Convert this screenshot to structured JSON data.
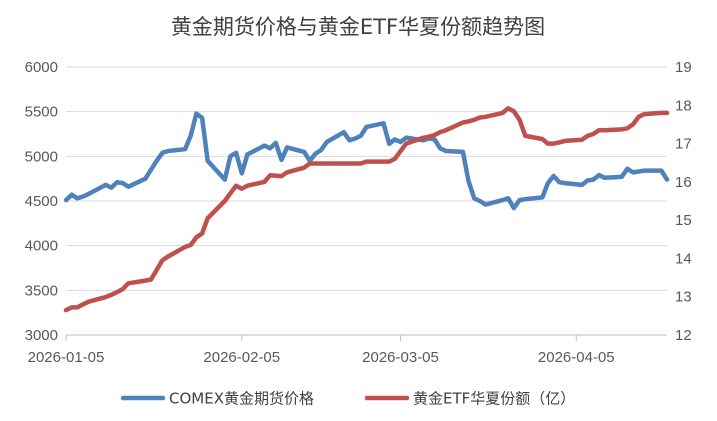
{
  "chart_data": {
    "type": "line",
    "title": "黄金期货价格与黄金ETF华夏份额趋势图",
    "x_ticks": [
      "2026-01-05",
      "2026-02-05",
      "2026-03-05",
      "2026-04-05"
    ],
    "x_range": [
      "2026-01-05",
      "2026-04-21"
    ],
    "y_left": {
      "min": 3000,
      "max": 6000,
      "ticks": [
        3000,
        3500,
        4000,
        4500,
        5000,
        5500,
        6000
      ]
    },
    "y_right": {
      "min": 12,
      "max": 19,
      "ticks": [
        12,
        13,
        14,
        15,
        16,
        17,
        18,
        19
      ]
    },
    "grid": "horizontal",
    "legend_position": "bottom",
    "series": [
      {
        "name": "COMEX黄金期货价格",
        "axis": "left",
        "color": "#4f81bd",
        "x": [
          "2026-01-05",
          "2026-01-06",
          "2026-01-07",
          "2026-01-08",
          "2026-01-09",
          "2026-01-12",
          "2026-01-13",
          "2026-01-14",
          "2026-01-15",
          "2026-01-16",
          "2026-01-19",
          "2026-01-20",
          "2026-01-21",
          "2026-01-22",
          "2026-01-23",
          "2026-01-26",
          "2026-01-27",
          "2026-01-28",
          "2026-01-29",
          "2026-01-30",
          "2026-02-02",
          "2026-02-03",
          "2026-02-04",
          "2026-02-05",
          "2026-02-06",
          "2026-02-09",
          "2026-02-10",
          "2026-02-11",
          "2026-02-12",
          "2026-02-13",
          "2026-02-16",
          "2026-02-17",
          "2026-02-18",
          "2026-02-19",
          "2026-02-20",
          "2026-02-23",
          "2026-02-24",
          "2026-02-25",
          "2026-02-26",
          "2026-02-27",
          "2026-03-02",
          "2026-03-03",
          "2026-03-04",
          "2026-03-05",
          "2026-03-06",
          "2026-03-09",
          "2026-03-10",
          "2026-03-11",
          "2026-03-12",
          "2026-03-13",
          "2026-03-16",
          "2026-03-17",
          "2026-03-18",
          "2026-03-19",
          "2026-03-20",
          "2026-03-23",
          "2026-03-24",
          "2026-03-25",
          "2026-03-26",
          "2026-03-27",
          "2026-03-30",
          "2026-03-31",
          "2026-04-01",
          "2026-04-02",
          "2026-04-03",
          "2026-04-06",
          "2026-04-07",
          "2026-04-08",
          "2026-04-09",
          "2026-04-10",
          "2026-04-13",
          "2026-04-14",
          "2026-04-15",
          "2026-04-16",
          "2026-04-17",
          "2026-04-20",
          "2026-04-21"
        ],
        "values": [
          4510,
          4570,
          4530,
          4550,
          4580,
          4680,
          4650,
          4710,
          4700,
          4660,
          4750,
          4850,
          4950,
          5040,
          5060,
          5080,
          5230,
          5480,
          5430,
          4950,
          4740,
          5000,
          5040,
          4810,
          5020,
          5120,
          5090,
          5150,
          4960,
          5100,
          5050,
          4950,
          5030,
          5070,
          5160,
          5270,
          5180,
          5200,
          5230,
          5330,
          5370,
          5140,
          5190,
          5160,
          5210,
          5180,
          5200,
          5190,
          5090,
          5060,
          5050,
          4720,
          4530,
          4500,
          4460,
          4510,
          4530,
          4420,
          4510,
          4520,
          4540,
          4700,
          4780,
          4710,
          4700,
          4680,
          4730,
          4740,
          4790,
          4760,
          4770,
          4860,
          4820,
          4830,
          4840,
          4840,
          4740
        ]
      },
      {
        "name": "黄金ETF华夏份额（亿）",
        "axis": "right",
        "color": "#c0504d",
        "x": [
          "2026-01-05",
          "2026-01-06",
          "2026-01-07",
          "2026-01-08",
          "2026-01-09",
          "2026-01-12",
          "2026-01-13",
          "2026-01-14",
          "2026-01-15",
          "2026-01-16",
          "2026-01-19",
          "2026-01-20",
          "2026-01-21",
          "2026-01-22",
          "2026-01-23",
          "2026-01-26",
          "2026-01-27",
          "2026-01-28",
          "2026-01-29",
          "2026-01-30",
          "2026-02-02",
          "2026-02-03",
          "2026-02-04",
          "2026-02-05",
          "2026-02-06",
          "2026-02-09",
          "2026-02-10",
          "2026-02-11",
          "2026-02-12",
          "2026-02-13",
          "2026-02-16",
          "2026-02-17",
          "2026-02-18",
          "2026-02-19",
          "2026-02-20",
          "2026-02-23",
          "2026-02-24",
          "2026-02-25",
          "2026-02-26",
          "2026-02-27",
          "2026-03-02",
          "2026-03-03",
          "2026-03-04",
          "2026-03-05",
          "2026-03-06",
          "2026-03-09",
          "2026-03-10",
          "2026-03-11",
          "2026-03-12",
          "2026-03-13",
          "2026-03-16",
          "2026-03-17",
          "2026-03-18",
          "2026-03-19",
          "2026-03-20",
          "2026-03-23",
          "2026-03-24",
          "2026-03-25",
          "2026-03-26",
          "2026-03-27",
          "2026-03-30",
          "2026-03-31",
          "2026-04-01",
          "2026-04-02",
          "2026-04-03",
          "2026-04-06",
          "2026-04-07",
          "2026-04-08",
          "2026-04-09",
          "2026-04-10",
          "2026-04-13",
          "2026-04-14",
          "2026-04-15",
          "2026-04-16",
          "2026-04-17",
          "2026-04-20",
          "2026-04-21"
        ],
        "values": [
          12.65,
          12.72,
          12.72,
          12.8,
          12.87,
          12.99,
          13.05,
          13.12,
          13.2,
          13.35,
          13.42,
          13.45,
          13.7,
          13.95,
          14.05,
          14.3,
          14.35,
          14.55,
          14.65,
          15.05,
          15.5,
          15.7,
          15.9,
          15.82,
          15.9,
          16.0,
          16.17,
          16.16,
          16.15,
          16.25,
          16.37,
          16.48,
          16.48,
          16.48,
          16.48,
          16.48,
          16.48,
          16.48,
          16.48,
          16.53,
          16.53,
          16.53,
          16.6,
          16.8,
          17.0,
          17.15,
          17.18,
          17.22,
          17.3,
          17.35,
          17.55,
          17.58,
          17.62,
          17.68,
          17.7,
          17.8,
          17.92,
          17.84,
          17.62,
          17.2,
          17.12,
          17.0,
          17.0,
          17.03,
          17.07,
          17.1,
          17.2,
          17.25,
          17.35,
          17.35,
          17.37,
          17.4,
          17.5,
          17.7,
          17.77,
          17.8,
          17.8
        ]
      }
    ]
  }
}
